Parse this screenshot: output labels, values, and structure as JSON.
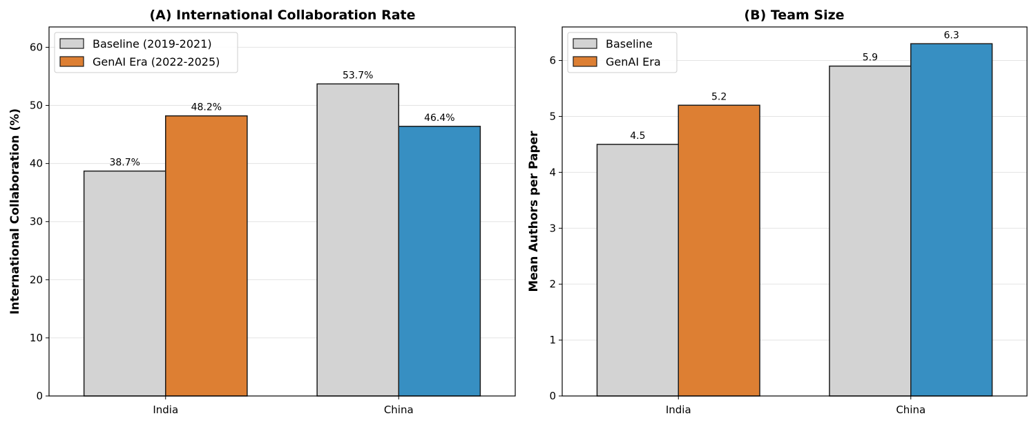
{
  "chart_data": [
    {
      "type": "bar",
      "title": "(A) International Collaboration Rate",
      "ylabel": "International Collaboration (%)",
      "xlabel": "",
      "categories": [
        "India",
        "China"
      ],
      "series": [
        {
          "name": "Baseline (2019-2021)",
          "values": [
            38.7,
            53.7
          ]
        },
        {
          "name": "GenAI Era (2022-2025)",
          "values": [
            48.2,
            46.4
          ]
        }
      ],
      "data_labels": [
        [
          "38.7%",
          "53.7%"
        ],
        [
          "48.2%",
          "46.4%"
        ]
      ],
      "yticks": [
        0,
        10,
        20,
        30,
        40,
        50,
        60
      ],
      "ylim": [
        0,
        63.5
      ],
      "grid": "horizontal",
      "legend": "top-left"
    },
    {
      "type": "bar",
      "title": "(B) Team Size",
      "ylabel": "Mean Authors per Paper",
      "xlabel": "",
      "categories": [
        "India",
        "China"
      ],
      "series": [
        {
          "name": "Baseline",
          "values": [
            4.5,
            5.9
          ]
        },
        {
          "name": "GenAI Era",
          "values": [
            5.2,
            6.3
          ]
        }
      ],
      "data_labels": [
        [
          "4.5",
          "5.9"
        ],
        [
          "5.2",
          "6.3"
        ]
      ],
      "yticks": [
        0,
        1,
        2,
        3,
        4,
        5,
        6
      ],
      "ylim": [
        0,
        6.6
      ],
      "grid": "horizontal",
      "legend": "top-left"
    }
  ],
  "colors": {
    "baseline": "#d3d3d3",
    "genai_india": "#dd7f33",
    "genai_china": "#378fc2",
    "edge": "#1a1a1a",
    "grid": "#e3e3e3"
  }
}
